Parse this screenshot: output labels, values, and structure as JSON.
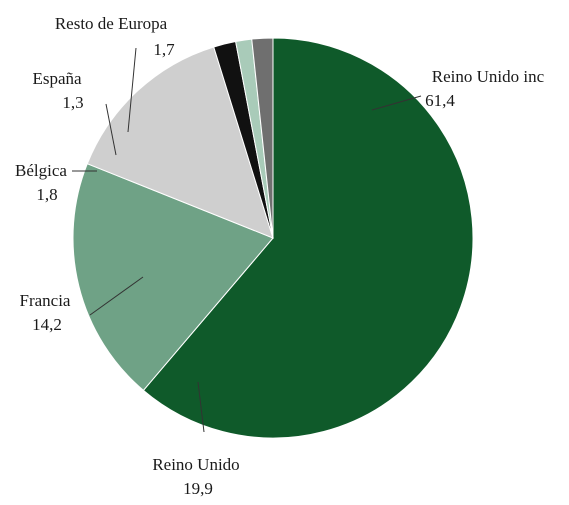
{
  "chart_data": {
    "type": "pie",
    "title": "",
    "slices": [
      {
        "label": "Reino Unido inc",
        "value": 61.4,
        "display": "61,4",
        "color": "#0f5a2a"
      },
      {
        "label": "Reino Unido",
        "value": 19.9,
        "display": "19,9",
        "color": "#6fa286"
      },
      {
        "label": "Francia",
        "value": 14.2,
        "display": "14,2",
        "color": "#cfcfcf"
      },
      {
        "label": "Bélgica",
        "value": 1.8,
        "display": "1,8",
        "color": "#111111"
      },
      {
        "label": "España",
        "value": 1.3,
        "display": "1,3",
        "color": "#a9cbb9"
      },
      {
        "label": "Resto de Europa",
        "value": 1.7,
        "display": "1,7",
        "color": "#6f6f6f"
      }
    ],
    "legend": "none",
    "start_angle_deg": 0,
    "direction": "clockwise"
  }
}
